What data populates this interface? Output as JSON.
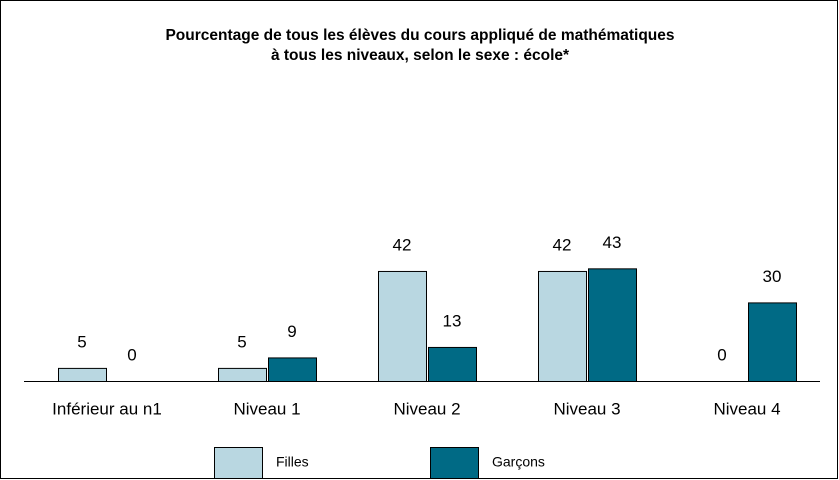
{
  "chart_data": {
    "type": "bar",
    "title": [
      "Pourcentage de tous les élèves du cours appliqué de mathématiques",
      "à tous les niveaux, selon le sexe : école*"
    ],
    "categories": [
      "Inférieur au n1",
      "Niveau 1",
      "Niveau 2",
      "Niveau 3",
      "Niveau 4"
    ],
    "series": [
      {
        "name": "Filles",
        "color": "#b9d7e1",
        "values": [
          5,
          5,
          42,
          42,
          0
        ]
      },
      {
        "name": "Garçons",
        "color": "#006a85",
        "values": [
          0,
          9,
          13,
          43,
          30
        ]
      }
    ]
  }
}
